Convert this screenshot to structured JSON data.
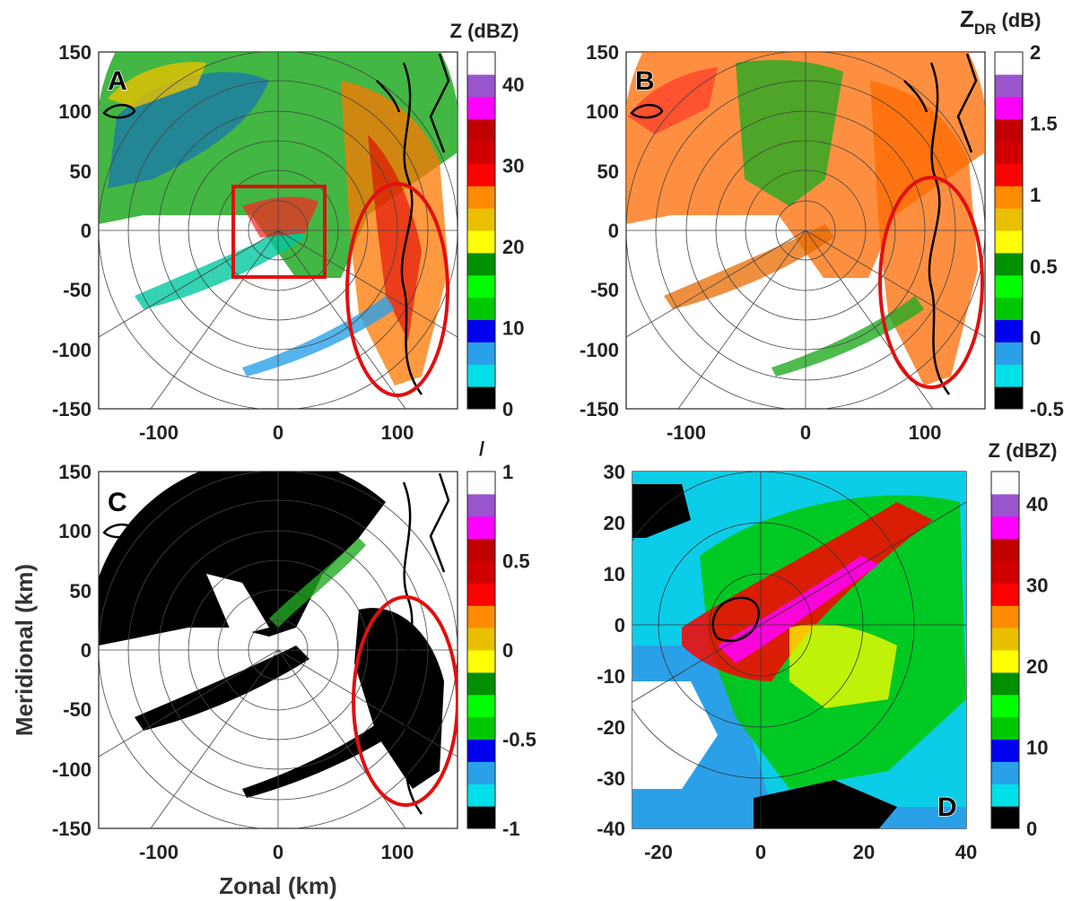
{
  "figure": {
    "xlabel": "Zonal (km)",
    "ylabel": "Meridional (km)"
  },
  "chart_data": [
    {
      "panel": "A",
      "type": "heatmap",
      "variable": "Z",
      "colorbar_title": "Z (dBZ)",
      "colorbar_ticks": [
        "0",
        "10",
        "20",
        "30",
        "40"
      ],
      "colorbar_range": [
        0,
        44
      ],
      "xlim": [
        -150,
        150
      ],
      "ylim": [
        -150,
        150
      ],
      "xticks": [
        "-100",
        "0",
        "100"
      ],
      "yticks": [
        "150",
        "100",
        "50",
        "0",
        "-50",
        "-100",
        "-150"
      ],
      "annotations": [
        {
          "shape": "rectangle",
          "color": "#e01010",
          "x_range": [
            -40,
            40
          ],
          "y_range": [
            -40,
            40
          ]
        },
        {
          "shape": "ellipse",
          "color": "#e01010",
          "center": [
            103,
            -50
          ],
          "radii": [
            42,
            95
          ]
        }
      ]
    },
    {
      "panel": "B",
      "type": "heatmap",
      "variable": "ZDR",
      "colorbar_title_main": "Z",
      "colorbar_title_sub": "DR",
      "colorbar_title_unit": "(dB)",
      "colorbar_ticks": [
        "-0.5",
        "0",
        "0.5",
        "1",
        "1.5",
        "2"
      ],
      "colorbar_range": [
        -0.5,
        2
      ],
      "xlim": [
        -150,
        150
      ],
      "ylim": [
        -150,
        150
      ],
      "xticks": [
        "-100",
        "0",
        "100"
      ],
      "yticks": [
        "150",
        "100",
        "50",
        "0",
        "-50",
        "-100",
        "-150"
      ],
      "annotations": [
        {
          "shape": "ellipse",
          "color": "#e01010",
          "center": [
            105,
            -55
          ],
          "radii": [
            43,
            95
          ]
        }
      ]
    },
    {
      "panel": "C",
      "type": "heatmap",
      "variable": "unlabeled",
      "colorbar_title": "/",
      "colorbar_ticks": [
        "-1",
        "-0.5",
        "0",
        "0.5",
        "1"
      ],
      "colorbar_range": [
        -1,
        1
      ],
      "xlim": [
        -150,
        150
      ],
      "ylim": [
        -150,
        150
      ],
      "xticks": [
        "-100",
        "0",
        "100"
      ],
      "yticks": [
        "150",
        "100",
        "50",
        "0",
        "-50",
        "-100",
        "-150"
      ],
      "annotations": [
        {
          "shape": "ellipse",
          "color": "#e01010",
          "center": [
            106,
            -55
          ],
          "radii": [
            44,
            108
          ]
        }
      ]
    },
    {
      "panel": "D",
      "type": "heatmap",
      "variable": "Z",
      "colorbar_title": "Z (dBZ)",
      "colorbar_ticks": [
        "0",
        "10",
        "20",
        "30",
        "40"
      ],
      "colorbar_range": [
        0,
        44
      ],
      "xlim": [
        -25,
        40
      ],
      "ylim": [
        -40,
        30
      ],
      "xticks": [
        "-20",
        "0",
        "20",
        "40"
      ],
      "yticks": [
        "30",
        "20",
        "10",
        "0",
        "-10",
        "-20",
        "-30",
        "-40"
      ]
    }
  ],
  "colormap": [
    "#000000",
    "#00e0e8",
    "#2aa0e8",
    "#0000f0",
    "#00c800",
    "#00ff00",
    "#009000",
    "#ffff00",
    "#e8c000",
    "#ff8c00",
    "#ff0000",
    "#d00000",
    "#c00000",
    "#ff00ff",
    "#9955cc",
    "#ffffff"
  ],
  "colors": {
    "annotation": "#e01010",
    "coastline": "#000000",
    "range_rings": "#444444"
  }
}
